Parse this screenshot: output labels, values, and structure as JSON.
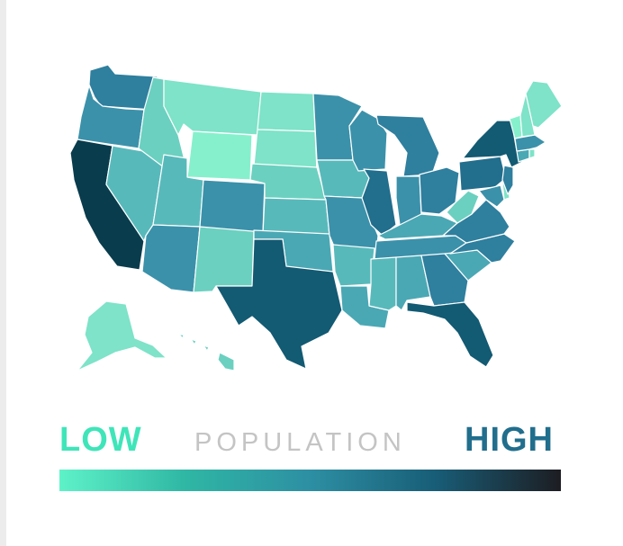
{
  "legend": {
    "low_label": "LOW",
    "title": "POPULATION",
    "high_label": "HIGH",
    "low_color": "#3fe5b9",
    "high_color": "#1d1d22",
    "gradient": [
      "#5ef2c8",
      "#2fb7a4",
      "#2d8fa3",
      "#185d77",
      "#1d1d22"
    ]
  },
  "palette": {
    "l1": "#86f0cd",
    "l2": "#7ee3c8",
    "l3": "#6bd0c0",
    "l4": "#58b9bb",
    "l5": "#4aa8b4",
    "l6": "#3b91aa",
    "l7": "#2f7f9e",
    "l8": "#216e8d",
    "l9": "#135a73",
    "l10": "#093c4d"
  },
  "states": [
    {
      "name": "Washington",
      "level": "l7"
    },
    {
      "name": "Oregon",
      "level": "l6"
    },
    {
      "name": "California",
      "level": "l10"
    },
    {
      "name": "Nevada",
      "level": "l4"
    },
    {
      "name": "Idaho",
      "level": "l3"
    },
    {
      "name": "Montana",
      "level": "l2"
    },
    {
      "name": "Wyoming",
      "level": "l1"
    },
    {
      "name": "Utah",
      "level": "l4"
    },
    {
      "name": "Arizona",
      "level": "l6"
    },
    {
      "name": "New Mexico",
      "level": "l3"
    },
    {
      "name": "Colorado",
      "level": "l6"
    },
    {
      "name": "North Dakota",
      "level": "l2"
    },
    {
      "name": "South Dakota",
      "level": "l2"
    },
    {
      "name": "Nebraska",
      "level": "l3"
    },
    {
      "name": "Kansas",
      "level": "l4"
    },
    {
      "name": "Oklahoma",
      "level": "l5"
    },
    {
      "name": "Texas",
      "level": "l9"
    },
    {
      "name": "Minnesota",
      "level": "l6"
    },
    {
      "name": "Iowa",
      "level": "l4"
    },
    {
      "name": "Missouri",
      "level": "l6"
    },
    {
      "name": "Arkansas",
      "level": "l4"
    },
    {
      "name": "Louisiana",
      "level": "l5"
    },
    {
      "name": "Wisconsin",
      "level": "l6"
    },
    {
      "name": "Illinois",
      "level": "l8"
    },
    {
      "name": "Michigan",
      "level": "l7"
    },
    {
      "name": "Indiana",
      "level": "l6"
    },
    {
      "name": "Ohio",
      "level": "l7"
    },
    {
      "name": "Kentucky",
      "level": "l5"
    },
    {
      "name": "Tennessee",
      "level": "l6"
    },
    {
      "name": "Mississippi",
      "level": "l4"
    },
    {
      "name": "Alabama",
      "level": "l5"
    },
    {
      "name": "Georgia",
      "level": "l7"
    },
    {
      "name": "Florida",
      "level": "l9"
    },
    {
      "name": "South Carolina",
      "level": "l5"
    },
    {
      "name": "North Carolina",
      "level": "l7"
    },
    {
      "name": "Virginia",
      "level": "l7"
    },
    {
      "name": "West Virginia",
      "level": "l3"
    },
    {
      "name": "Pennsylvania",
      "level": "l8"
    },
    {
      "name": "New York",
      "level": "l9"
    },
    {
      "name": "Maryland",
      "level": "l6"
    },
    {
      "name": "Delaware",
      "level": "l2"
    },
    {
      "name": "New Jersey",
      "level": "l7"
    },
    {
      "name": "Connecticut",
      "level": "l5"
    },
    {
      "name": "Rhode Island",
      "level": "l2"
    },
    {
      "name": "Massachusetts",
      "level": "l6"
    },
    {
      "name": "Vermont",
      "level": "l1"
    },
    {
      "name": "New Hampshire",
      "level": "l2"
    },
    {
      "name": "Maine",
      "level": "l2"
    },
    {
      "name": "Alaska",
      "level": "l2"
    },
    {
      "name": "Hawaii",
      "level": "l3"
    }
  ]
}
